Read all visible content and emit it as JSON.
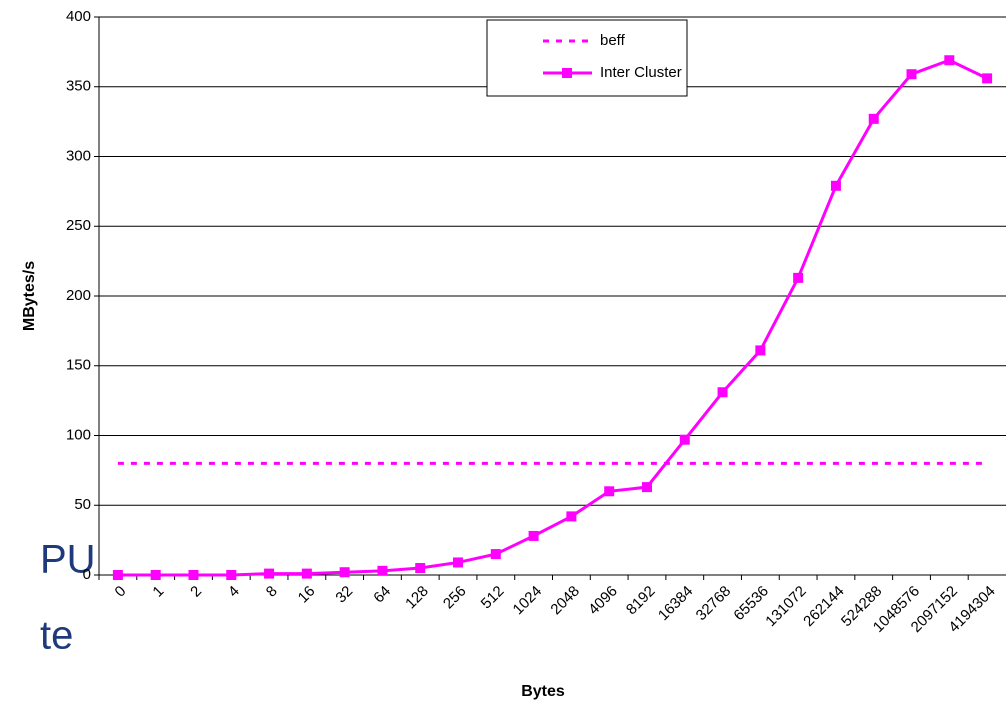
{
  "slide_text_fragments": [
    "PU",
    "te"
  ],
  "chart_data": {
    "type": "line",
    "x_label": "Bytes",
    "y_label": "MBytes/s",
    "categories": [
      "0",
      "1",
      "2",
      "4",
      "8",
      "16",
      "32",
      "64",
      "128",
      "256",
      "512",
      "1024",
      "2048",
      "4096",
      "8192",
      "16384",
      "32768",
      "65536",
      "131072",
      "262144",
      "524288",
      "1048576",
      "2097152",
      "4194304"
    ],
    "series": [
      {
        "name": "beff",
        "color": "#ff00ff",
        "line_style": "dashed",
        "marker": "none",
        "values": [
          80,
          80,
          80,
          80,
          80,
          80,
          80,
          80,
          80,
          80,
          80,
          80,
          80,
          80,
          80,
          80,
          80,
          80,
          80,
          80,
          80,
          80,
          80,
          80
        ]
      },
      {
        "name": "Inter Cluster",
        "color": "#ff00ff",
        "line_style": "solid",
        "marker": "square",
        "values": [
          0,
          0,
          0,
          0,
          1,
          1,
          2,
          3,
          5,
          9,
          15,
          28,
          42,
          60,
          63,
          97,
          131,
          161,
          213,
          279,
          327,
          359,
          369,
          356
        ]
      }
    ],
    "ylim": [
      0,
      400
    ],
    "yticks": [
      0,
      50,
      100,
      150,
      200,
      250,
      300,
      350,
      400
    ],
    "grid": true,
    "legend": "top-right"
  }
}
